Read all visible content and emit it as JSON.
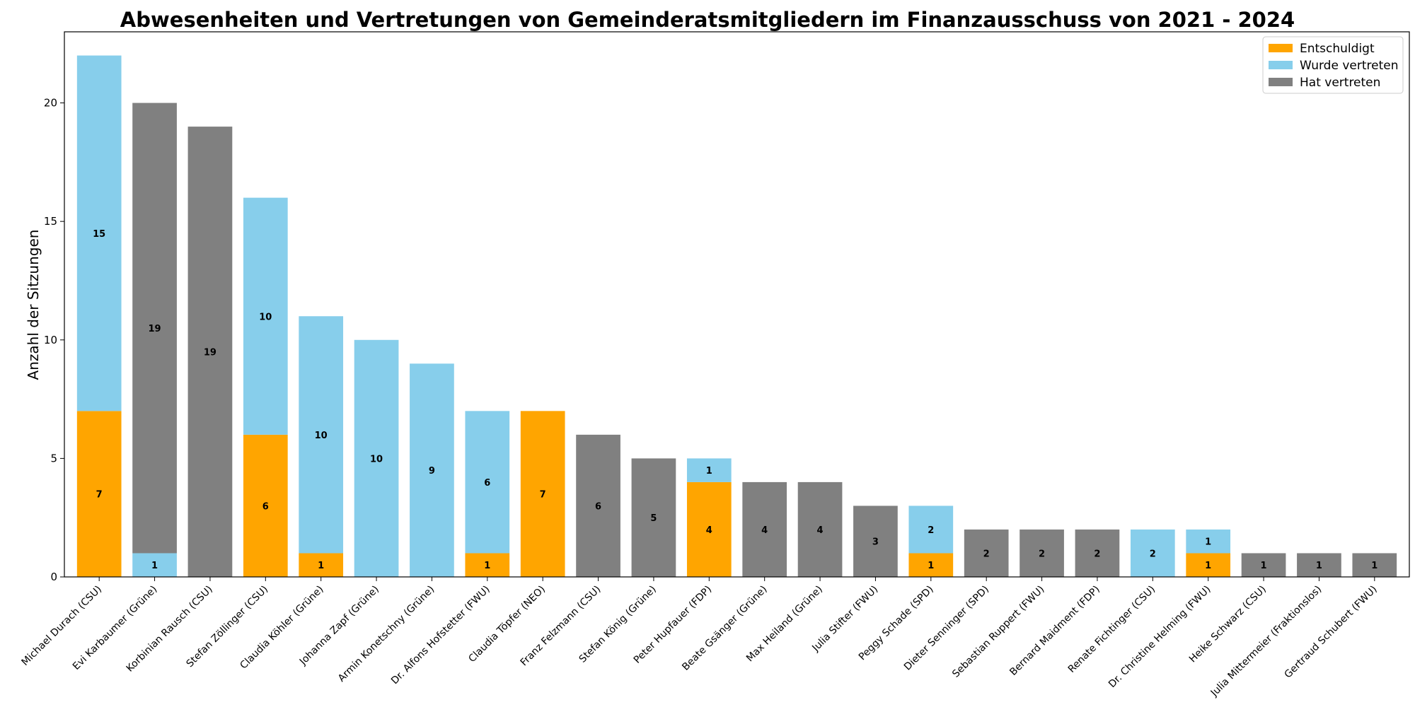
{
  "chart_data": {
    "type": "bar",
    "stacked": true,
    "title": "Abwesenheiten und Vertretungen von Gemeinderatsmitgliedern im Finanzausschuss von 2021 - 2024",
    "xlabel": "",
    "ylabel": "Anzahl der Sitzungen",
    "ylim": [
      0,
      23
    ],
    "yticks": [
      0,
      5,
      10,
      15,
      20
    ],
    "grid": false,
    "legend_position": "top-right",
    "categories": [
      "Michael Durach (CSU)",
      "Evi Karbaumer (Grüne)",
      "Korbinian Rausch (CSU)",
      "Stefan Zöllinger (CSU)",
      "Claudia Köhler (Grüne)",
      "Johanna Zapf (Grüne)",
      "Armin Konetschny (Grüne)",
      "Dr. Alfons Hofstetter (FWU)",
      "Claudia Töpfer (NEO)",
      "Franz Felzmann (CSU)",
      "Stefan König (Grüne)",
      "Peter Hupfauer (FDP)",
      "Beate Gsänger (Grüne)",
      "Max Heiland (Grüne)",
      "Julia Stifter (FWU)",
      "Peggy Schade (SPD)",
      "Dieter Senninger (SPD)",
      "Sebastian Ruppert (FWU)",
      "Bernard Maidment (FDP)",
      "Renate Fichtinger (CSU)",
      "Dr. Christine Helming (FWU)",
      "Heike Schwarz (CSU)",
      "Julia Mittermeier (Fraktionslos)",
      "Gertraud Schubert (FWU)"
    ],
    "series": [
      {
        "name": "Entschuldigt",
        "color": "#FFA500",
        "values": [
          7,
          0,
          0,
          6,
          1,
          0,
          0,
          1,
          7,
          0,
          0,
          4,
          0,
          0,
          0,
          1,
          0,
          0,
          0,
          0,
          1,
          0,
          0,
          0
        ]
      },
      {
        "name": "Wurde vertreten",
        "color": "#87CEEB",
        "values": [
          15,
          1,
          0,
          10,
          10,
          10,
          9,
          6,
          0,
          0,
          0,
          1,
          0,
          0,
          0,
          2,
          0,
          0,
          0,
          2,
          1,
          0,
          0,
          0
        ]
      },
      {
        "name": "Hat vertreten",
        "color": "#808080",
        "values": [
          0,
          19,
          19,
          0,
          0,
          0,
          0,
          0,
          0,
          6,
          5,
          0,
          4,
          4,
          3,
          0,
          2,
          2,
          2,
          0,
          0,
          1,
          1,
          1
        ]
      }
    ]
  }
}
